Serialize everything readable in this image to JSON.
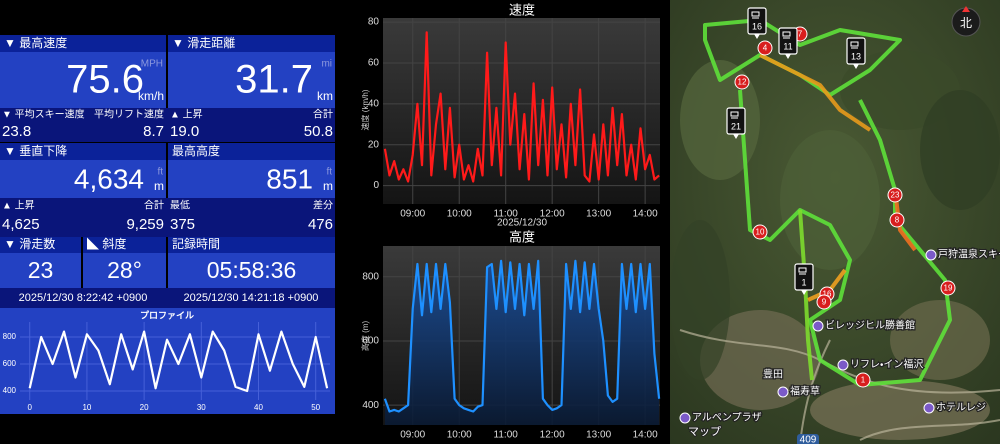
{
  "stats": {
    "max_speed": {
      "label": "▼ 最高速度",
      "value": "75.6",
      "unit_alt": "MPH",
      "unit": "km/h"
    },
    "distance": {
      "label": "▼ 滑走距離",
      "value": "31.7",
      "unit_alt": "mi",
      "unit": "km"
    },
    "avg_ski": {
      "label": "▼ 平均スキー速度",
      "value": "23.8",
      "right_label": "平均リフト速度",
      "right_value": "8.7"
    },
    "ascent_speed": {
      "label": "▲ 上昇",
      "value": "19.0",
      "right_label": "合計",
      "right_value": "50.8"
    },
    "vertical": {
      "label": "▼ 垂直下降",
      "value": "4,634",
      "unit_alt": "ft",
      "unit": "m"
    },
    "max_alt": {
      "label": "最高高度",
      "value": "851",
      "unit_alt": "ft",
      "unit": "m"
    },
    "ascent": {
      "label": "▲ 上昇",
      "value": "4,625",
      "right_label": "合計",
      "right_value": "9,259"
    },
    "min_alt": {
      "label": "最低",
      "value": "375",
      "right_label": "差分",
      "right_value": "476"
    },
    "runs": {
      "label": "▼ 滑走数",
      "value": "23"
    },
    "slope": {
      "label": "◣ 斜度",
      "value": "28°"
    },
    "duration": {
      "label": "記録時間",
      "value": "05:58:36"
    },
    "start": "2025/12/30 8:22:42 +0900",
    "end": "2025/12/30 14:21:18 +0900"
  },
  "profile": {
    "type": "line",
    "title": "プロファイル",
    "x": [
      0,
      2,
      4,
      6,
      8,
      10,
      12,
      14,
      16,
      18,
      20,
      22,
      24,
      26,
      28,
      30,
      32,
      34,
      36,
      38,
      40,
      42,
      44,
      46,
      48,
      50,
      52
    ],
    "values": [
      420,
      800,
      600,
      840,
      500,
      820,
      700,
      450,
      820,
      560,
      840,
      420,
      780,
      600,
      820,
      500,
      840,
      700,
      430,
      400,
      820,
      550,
      840,
      600,
      430,
      800,
      420
    ],
    "xlim": [
      -1.7,
      52.5
    ],
    "ylim": [
      333,
      911
    ],
    "xticks": [
      0,
      10,
      20,
      30,
      40,
      50
    ],
    "yticks": [
      400,
      600,
      800
    ],
    "color": "#ffffff"
  },
  "time": {
    "x": [
      8.4,
      8.5,
      8.6,
      8.7,
      8.8,
      8.9,
      9.0,
      9.1,
      9.2,
      9.3,
      9.4,
      9.5,
      9.6,
      9.7,
      9.8,
      9.9,
      10.0,
      10.1,
      10.2,
      10.3,
      10.4,
      10.5,
      10.6,
      10.7,
      10.8,
      10.9,
      11.0,
      11.1,
      11.2,
      11.3,
      11.4,
      11.5,
      11.6,
      11.7,
      11.8,
      11.9,
      12.0,
      12.1,
      12.2,
      12.3,
      12.4,
      12.5,
      12.6,
      12.7,
      12.8,
      12.9,
      13.0,
      13.1,
      13.2,
      13.3,
      13.4,
      13.5,
      13.6,
      13.7,
      13.8,
      13.9,
      14.0,
      14.1,
      14.2,
      14.3
    ],
    "xlim": [
      8.36,
      14.32
    ],
    "xticks": [
      {
        "value": 9,
        "label": "09:00"
      },
      {
        "value": 10,
        "label": "10:00"
      },
      {
        "value": 11,
        "label": "11:00"
      },
      {
        "value": 12,
        "label": "12:00"
      },
      {
        "value": 13,
        "label": "13:00"
      },
      {
        "value": 14,
        "label": "14:00"
      }
    ],
    "date": "2025/12/30"
  },
  "speed": {
    "type": "line",
    "title": "速度",
    "y_label": "速度 (km/h)",
    "values": [
      18,
      5,
      12,
      3,
      8,
      2,
      15,
      40,
      10,
      75,
      5,
      30,
      45,
      8,
      38,
      4,
      20,
      3,
      10,
      2,
      18,
      5,
      65,
      10,
      38,
      5,
      70,
      20,
      45,
      8,
      35,
      3,
      50,
      10,
      42,
      5,
      48,
      8,
      30,
      4,
      40,
      10,
      47,
      5,
      2,
      25,
      3,
      30,
      5,
      38,
      10,
      35,
      5,
      20,
      3,
      28,
      8,
      15,
      3,
      5
    ],
    "ylim": [
      -9,
      82
    ],
    "yticks": [
      0,
      20,
      40,
      60,
      80
    ],
    "color": "#ff1a1a"
  },
  "altitude": {
    "type": "area",
    "title": "高度",
    "y_label": "高度 (m)",
    "values": [
      420,
      380,
      385,
      380,
      390,
      400,
      700,
      840,
      680,
      840,
      690,
      840,
      700,
      840,
      720,
      420,
      400,
      390,
      385,
      380,
      395,
      400,
      830,
      840,
      700,
      850,
      690,
      845,
      700,
      840,
      680,
      840,
      700,
      850,
      420,
      400,
      385,
      390,
      400,
      840,
      700,
      850,
      690,
      845,
      700,
      840,
      700,
      600,
      430,
      410,
      420,
      840,
      700,
      840,
      690,
      840,
      700,
      840,
      560,
      420
    ],
    "ylim": [
      338,
      896
    ],
    "yticks": [
      400,
      600,
      800
    ],
    "color": "#1e90ff"
  },
  "map": {
    "compass": "北",
    "places": [
      "戸狩温泉スキー",
      "ビレッジヒル勝善館",
      "リフレ・イン福沢",
      "豊田",
      "福寿草",
      "アルペンプラザ",
      "ホテルレジ",
      "409"
    ],
    "markers": [
      "4",
      "7",
      "12",
      "23",
      "8",
      "10",
      "16",
      "9",
      "19",
      "1"
    ],
    "pins": [
      "16",
      "11",
      "13",
      "21",
      "1"
    ],
    "attribution": "マップ"
  }
}
